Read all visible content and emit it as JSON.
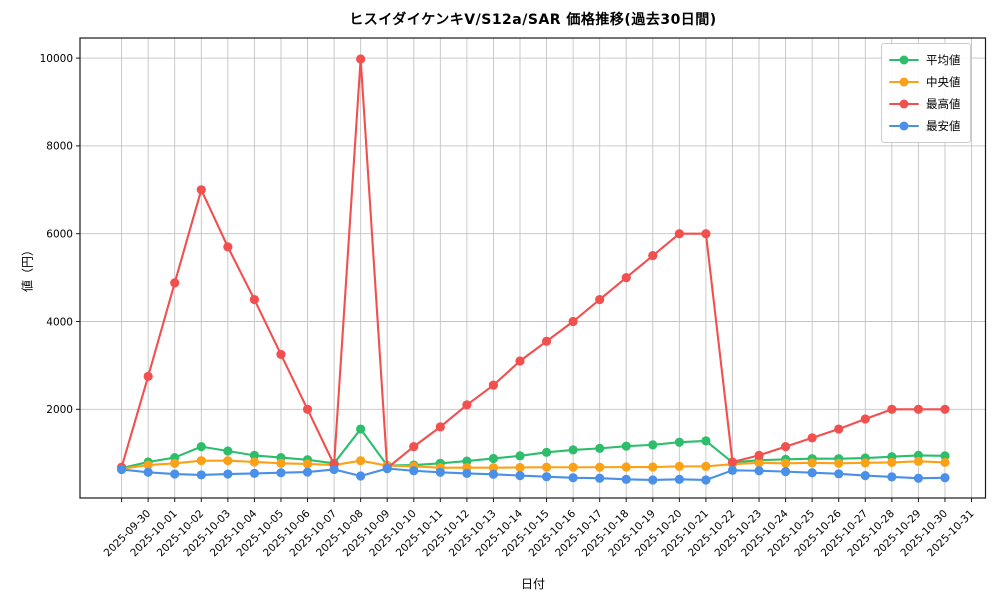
{
  "chart_data": {
    "type": "line",
    "title": "ヒスイダイケンキV/S12a/SAR 価格推移(過去30日間)",
    "xlabel": "日付",
    "ylabel": "値（円）",
    "grid": true,
    "legend_position": "upper right",
    "yticks": [
      2000,
      4000,
      6000,
      8000,
      10000
    ],
    "ylim": [
      -90,
      10460
    ],
    "x_tick_labels": [
      "2025-09-30",
      "2025-10-01",
      "2025-10-02",
      "2025-10-03",
      "2025-10-04",
      "2025-10-05",
      "2025-10-06",
      "2025-10-07",
      "2025-10-08",
      "2025-10-09",
      "2025-10-10",
      "2025-10-11",
      "2025-10-12",
      "2025-10-13",
      "2025-10-14",
      "2025-10-15",
      "2025-10-16",
      "2025-10-17",
      "2025-10-18",
      "2025-10-19",
      "2025-10-20",
      "2025-10-21",
      "2025-10-22",
      "2025-10-23",
      "2025-10-24",
      "2025-10-25",
      "2025-10-26",
      "2025-10-27",
      "2025-10-28",
      "2025-10-29",
      "2025-10-30",
      "2025-10-31"
    ],
    "x_note": "values[i] is drawn on the gridline of x_tick_labels[i]; each series also has one extra unlabeled leading point drawn one slot before the first tick, and no point is drawn at the last tick (2025-10-31, value null).",
    "series": [
      {
        "name": "平均値",
        "color": "#2dbe6c",
        "leading_point": 660,
        "values": [
          800,
          900,
          1150,
          1050,
          950,
          900,
          850,
          770,
          1550,
          720,
          730,
          770,
          820,
          880,
          940,
          1020,
          1075,
          1110,
          1160,
          1190,
          1250,
          1280,
          790,
          840,
          860,
          875,
          875,
          890,
          920,
          950,
          940,
          null
        ]
      },
      {
        "name": "中央値",
        "color": "#fba118",
        "leading_point": 645,
        "values": [
          730,
          770,
          830,
          830,
          800,
          770,
          755,
          730,
          830,
          715,
          700,
          670,
          670,
          670,
          675,
          680,
          680,
          680,
          685,
          685,
          700,
          700,
          750,
          780,
          770,
          780,
          770,
          780,
          790,
          815,
          790,
          null
        ]
      },
      {
        "name": "最高値",
        "color": "#f24f4f",
        "leading_point": 680,
        "values": [
          2750,
          4880,
          7000,
          5700,
          4500,
          3250,
          2000,
          740,
          9980,
          660,
          1150,
          1600,
          2100,
          2550,
          3100,
          3550,
          4000,
          4500,
          5000,
          5500,
          6000,
          6000,
          800,
          950,
          1150,
          1350,
          1550,
          1780,
          2000,
          2000,
          2000,
          null
        ]
      },
      {
        "name": "最安値",
        "color": "#4a90e8",
        "leading_point": 630,
        "values": [
          565,
          525,
          505,
          525,
          540,
          555,
          570,
          630,
          480,
          650,
          600,
          565,
          540,
          520,
          490,
          465,
          440,
          430,
          405,
          390,
          405,
          390,
          610,
          600,
          580,
          555,
          530,
          490,
          460,
          430,
          440,
          null
        ]
      }
    ],
    "style": {
      "grid_color": "#c4c4c4",
      "spine_color": "#1a1a1a",
      "tick_label_size": 10.5,
      "marker_radius": 4.6,
      "line_width": 2.1
    }
  }
}
